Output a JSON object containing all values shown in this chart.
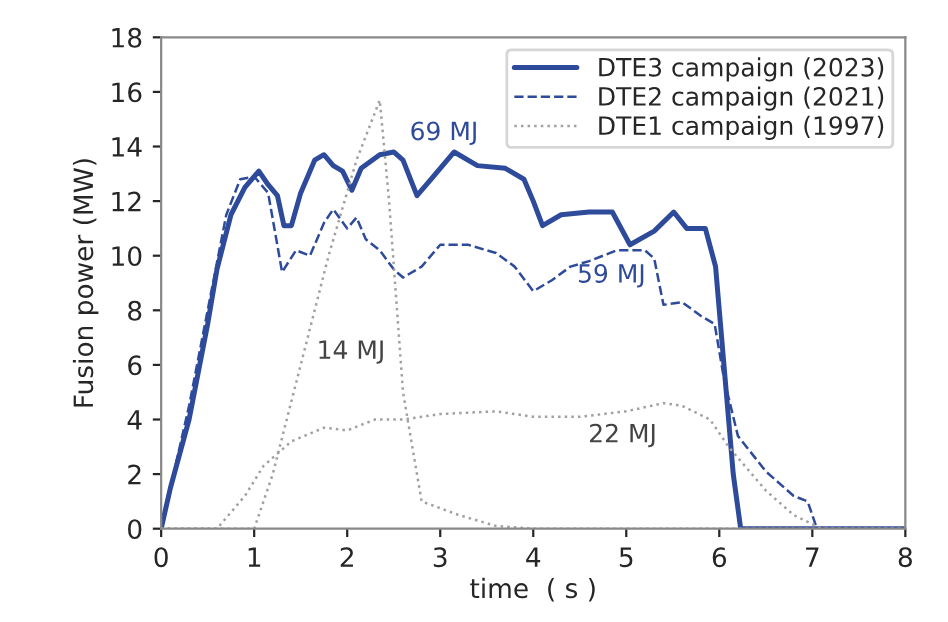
{
  "chart_data": {
    "type": "line",
    "xlabel": "time  ( s )",
    "ylabel": "Fusion power (MW)",
    "xlim": [
      0,
      8
    ],
    "ylim": [
      0,
      18
    ],
    "xticks": [
      0,
      1,
      2,
      3,
      4,
      5,
      6,
      7,
      8
    ],
    "yticks": [
      0,
      2,
      4,
      6,
      8,
      10,
      12,
      14,
      16,
      18
    ],
    "legend": "top right",
    "grid": false,
    "series": [
      {
        "name": "DTE3 campaign (2023)",
        "color": "#2e4a9a",
        "line_style": "solid",
        "x": [
          0,
          0.1,
          0.3,
          0.5,
          0.6,
          0.75,
          0.9,
          1.05,
          1.15,
          1.25,
          1.32,
          1.4,
          1.5,
          1.65,
          1.75,
          1.85,
          1.95,
          2.05,
          2.15,
          2.35,
          2.5,
          2.6,
          2.75,
          2.9,
          3.15,
          3.4,
          3.7,
          3.9,
          4.0,
          4.1,
          4.3,
          4.6,
          4.85,
          5.04,
          5.3,
          5.51,
          5.65,
          5.85,
          5.96,
          6.05,
          6.15,
          6.23,
          8
        ],
        "values": [
          0,
          1.5,
          4,
          7.5,
          9.5,
          11.5,
          12.5,
          13.1,
          12.6,
          12.2,
          11.1,
          11.1,
          12.3,
          13.5,
          13.7,
          13.3,
          13.1,
          12.4,
          13.2,
          13.7,
          13.8,
          13.5,
          12.2,
          12.8,
          13.8,
          13.3,
          13.2,
          12.8,
          12.0,
          11.1,
          11.5,
          11.6,
          11.6,
          10.4,
          10.9,
          11.6,
          11.0,
          11.0,
          9.6,
          6,
          2,
          0,
          0
        ]
      },
      {
        "name": "DTE2 campaign (2021)",
        "color": "#2e4a9a",
        "line_style": "dashed",
        "x": [
          0,
          0.3,
          0.5,
          0.7,
          0.85,
          1.0,
          1.15,
          1.3,
          1.45,
          1.6,
          1.75,
          1.85,
          2.0,
          2.1,
          2.2,
          2.35,
          2.5,
          2.6,
          2.8,
          3.0,
          3.3,
          3.6,
          3.8,
          4.0,
          4.2,
          4.4,
          4.6,
          4.9,
          5.2,
          5.3,
          5.4,
          5.6,
          5.8,
          5.95,
          6.05,
          6.2,
          6.5,
          6.8,
          6.95,
          7.05,
          8
        ],
        "values": [
          0,
          4.5,
          8,
          11.5,
          12.8,
          12.9,
          12.3,
          9.4,
          10.2,
          10.0,
          11.2,
          11.7,
          11.0,
          11.4,
          10.6,
          10.2,
          9.5,
          9.2,
          9.6,
          10.4,
          10.4,
          10.1,
          9.6,
          8.7,
          9.1,
          9.6,
          9.8,
          10.2,
          10.2,
          9.9,
          8.2,
          8.3,
          7.8,
          7.5,
          5.5,
          3.4,
          2.1,
          1.2,
          1.0,
          0,
          0
        ]
      },
      {
        "name": "DTE1 campaign (1997)",
        "color": "#a0a0a0",
        "line_style": "dotted",
        "x": [
          0,
          1.0,
          1.2,
          1.5,
          1.8,
          2.1,
          2.35,
          2.45,
          2.6,
          2.8,
          3.2,
          3.6,
          4,
          8
        ],
        "values": [
          0,
          0,
          2,
          6,
          10,
          13.5,
          15.7,
          12,
          5,
          1.0,
          0.5,
          0.1,
          0,
          0
        ]
      },
      {
        "color": "#a0a0a0",
        "line_style": "dotted",
        "x": [
          0,
          0.6,
          0.9,
          1.1,
          1.4,
          1.75,
          2.0,
          2.3,
          2.6,
          3.0,
          3.6,
          4.0,
          4.5,
          5.0,
          5.4,
          5.6,
          5.9,
          6.1,
          6.5,
          6.8,
          7.1,
          8
        ],
        "values": [
          0,
          0,
          1.2,
          2.3,
          3.2,
          3.7,
          3.6,
          4.0,
          4.0,
          4.2,
          4.3,
          4.1,
          4.1,
          4.3,
          4.6,
          4.5,
          4.0,
          3.0,
          1.4,
          0.5,
          0,
          0
        ]
      }
    ],
    "annotations": [
      "69 MJ",
      "59 MJ",
      "14 MJ",
      "22 MJ"
    ]
  }
}
